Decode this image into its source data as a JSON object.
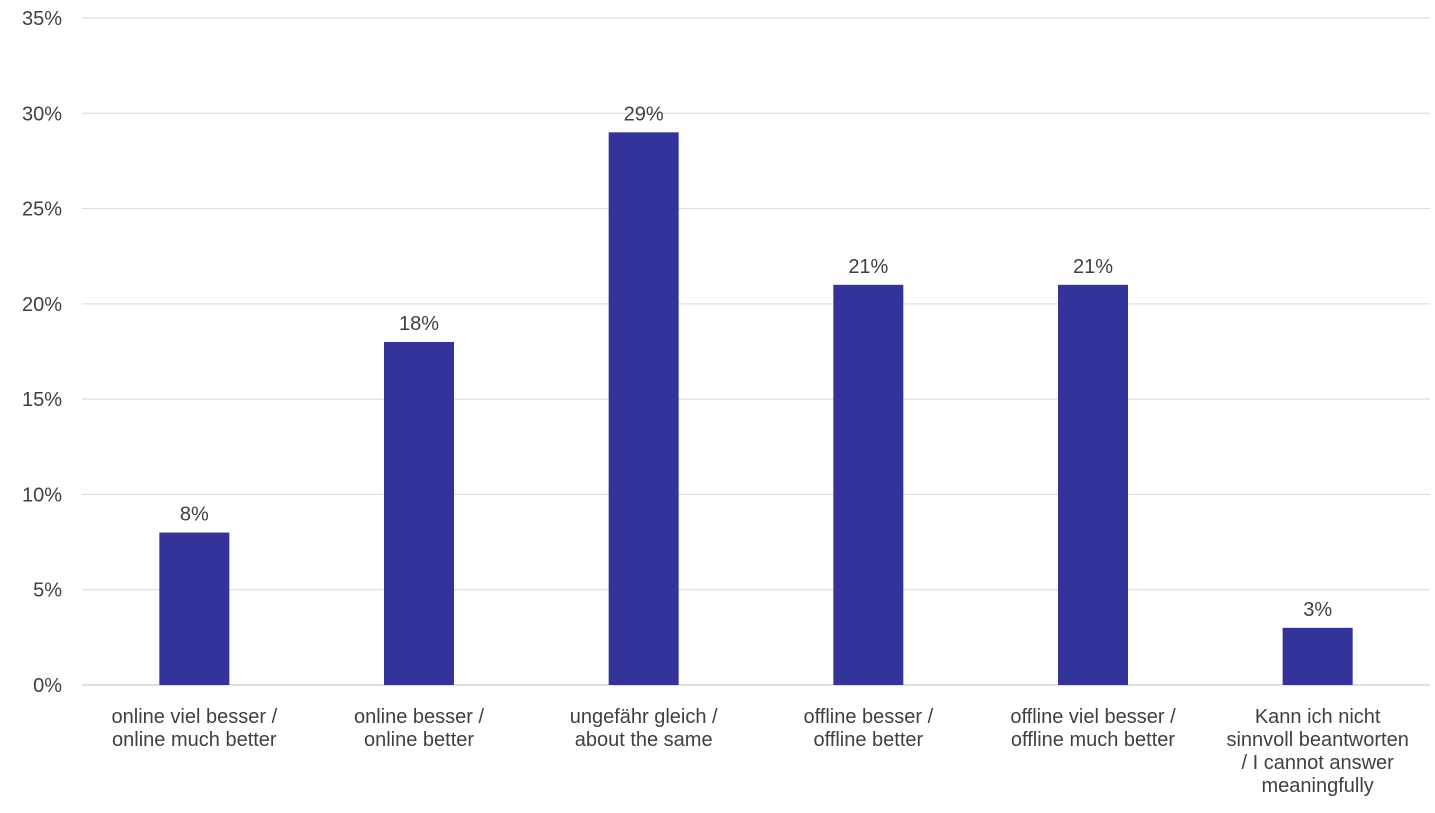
{
  "chart_data": {
    "type": "bar",
    "categories": [
      [
        "online viel besser /",
        "online much better"
      ],
      [
        "online besser /",
        "online better"
      ],
      [
        "ungefähr gleich /",
        "about the same"
      ],
      [
        "offline besser /",
        "offline better"
      ],
      [
        "offline viel besser /",
        "offline much better"
      ],
      [
        "Kann ich nicht",
        "sinnvoll beantworten",
        "/ I cannot answer",
        "meaningfully"
      ]
    ],
    "values": [
      8,
      18,
      29,
      21,
      21,
      3
    ],
    "value_labels": [
      "8%",
      "18%",
      "29%",
      "21%",
      "21%",
      "3%"
    ],
    "ylim": [
      0,
      35
    ],
    "yticks": [
      0,
      5,
      10,
      15,
      20,
      25,
      30,
      35
    ],
    "ytick_labels": [
      "0%",
      "5%",
      "10%",
      "15%",
      "20%",
      "25%",
      "30%",
      "35%"
    ],
    "grid": true,
    "legend": "none",
    "title": "",
    "xlabel": "",
    "ylabel": "",
    "colors": {
      "bar": "#333399",
      "grid": "#d9d9d9",
      "axis": "#bfbfbf",
      "text": "#404040"
    }
  }
}
